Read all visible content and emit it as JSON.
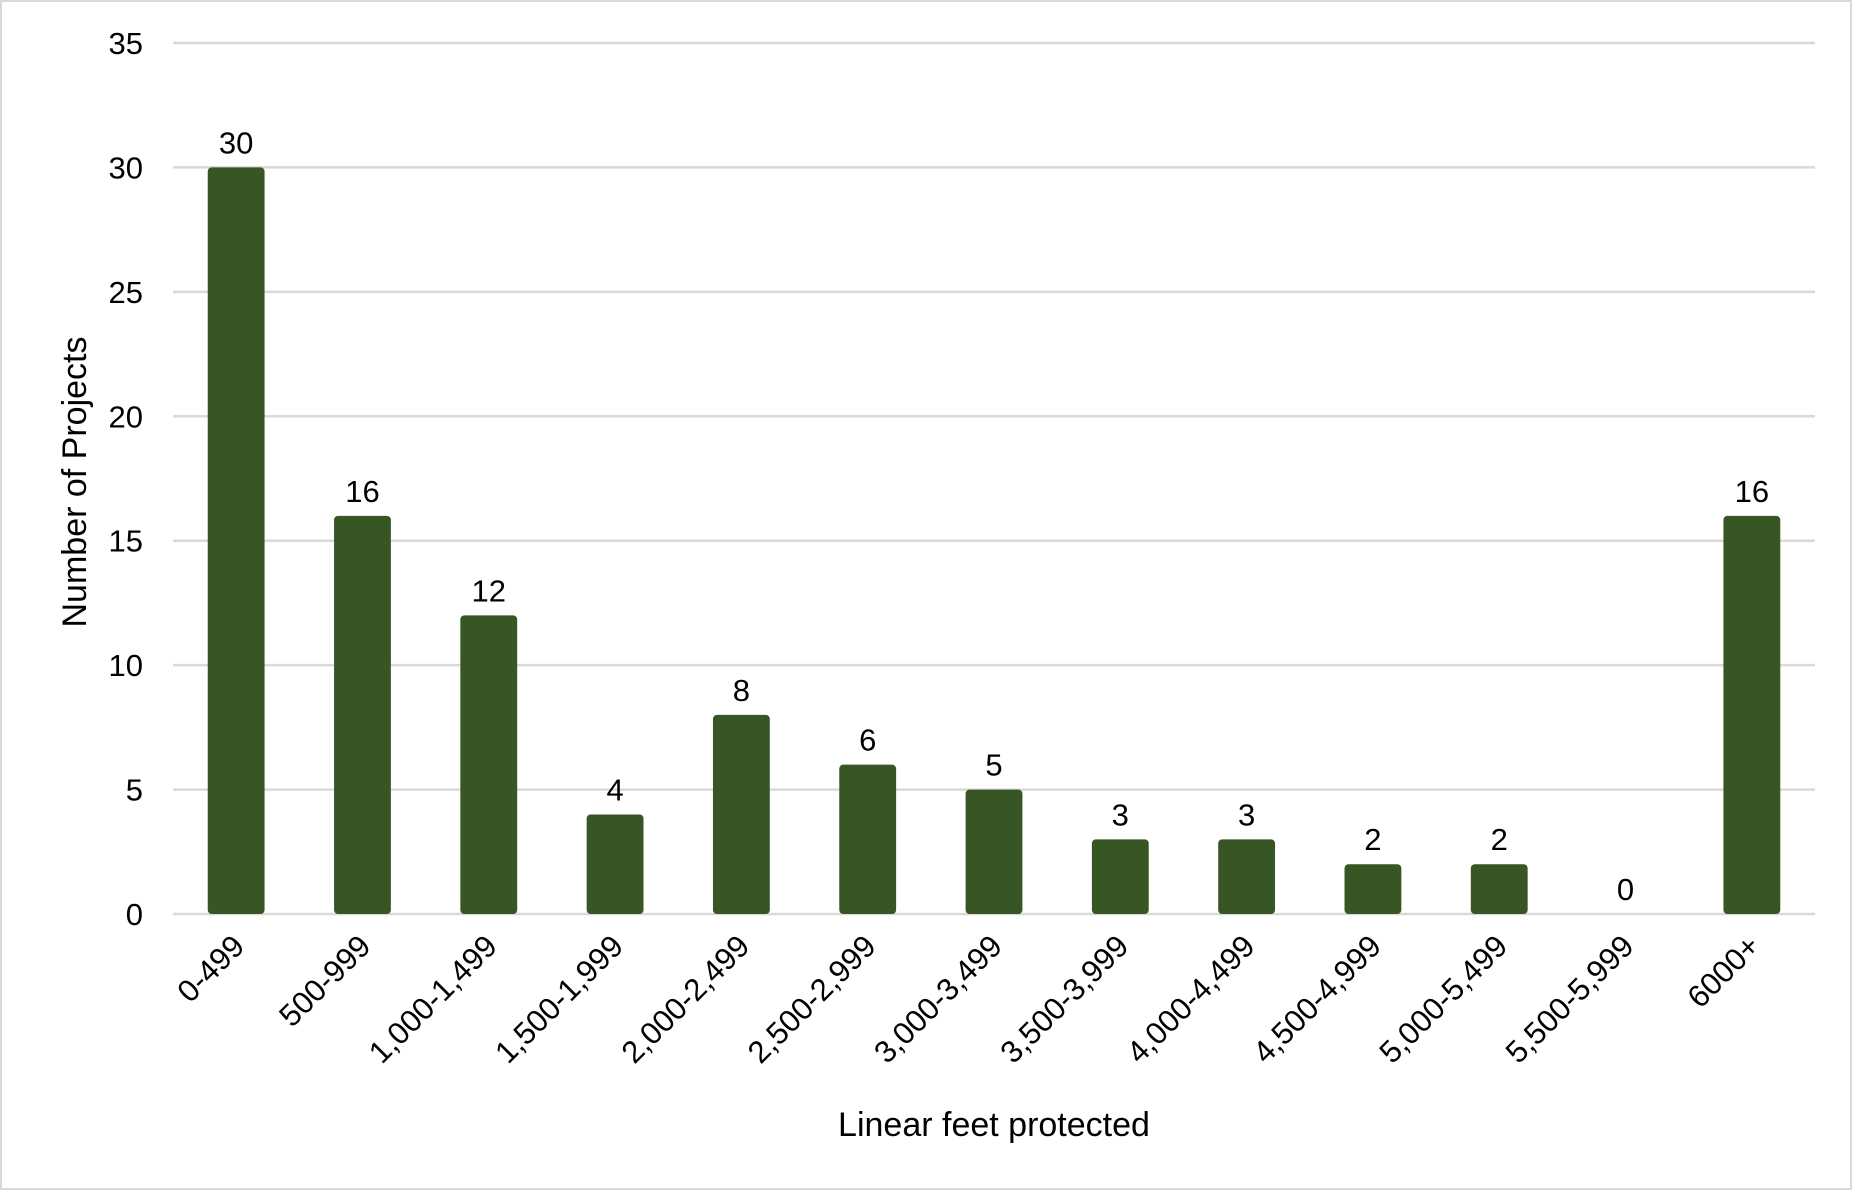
{
  "chart_data": {
    "type": "bar",
    "title": "",
    "xlabel": "Linear feet protected",
    "ylabel": "Number of Projects",
    "categories": [
      "0-499",
      "500-999",
      "1,000-1,499",
      "1,500-1,999",
      "2,000-2,499",
      "2,500-2,999",
      "3,000-3,499",
      "3,500-3,999",
      "4,000-4,499",
      "4,500-4,999",
      "5,000-5,499",
      "5,500-5,999",
      "6000+"
    ],
    "values": [
      30,
      16,
      12,
      4,
      8,
      6,
      5,
      3,
      3,
      2,
      2,
      0,
      16
    ],
    "ylim": [
      0,
      35
    ],
    "yticks": [
      0,
      5,
      10,
      15,
      20,
      25,
      30,
      35
    ],
    "grid": true,
    "legend": "none",
    "data_labels": true,
    "colors": {
      "bar": "#375623",
      "grid": "#d9d9d9",
      "border": "#d9d9d9"
    }
  }
}
